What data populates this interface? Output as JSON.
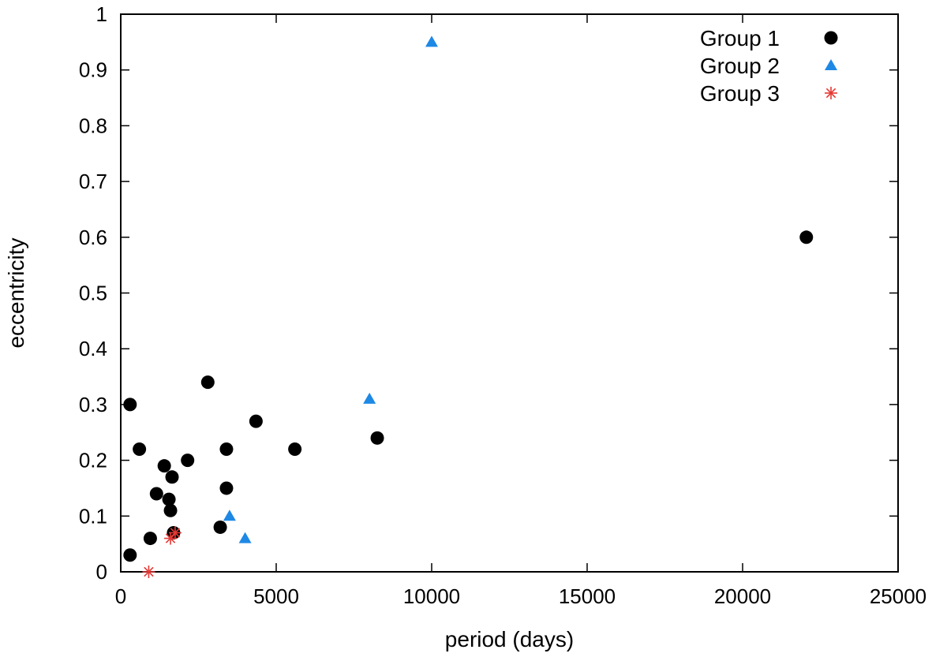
{
  "chart_data": {
    "type": "scatter",
    "xlabel": "period (days)",
    "ylabel": "eccentricity",
    "xlim": [
      0,
      25000
    ],
    "ylim": [
      0,
      1
    ],
    "x_ticks": [
      "0",
      "5000",
      "10000",
      "15000",
      "20000",
      "25000"
    ],
    "y_ticks": [
      "0",
      "0.1",
      "0.2",
      "0.3",
      "0.4",
      "0.5",
      "0.6",
      "0.7",
      "0.8",
      "0.9",
      "1"
    ],
    "legend_position": "top-right",
    "grid": false,
    "series": [
      {
        "name": "Group 1",
        "marker": "circle",
        "color": "#000000",
        "points": [
          [
            300,
            0.03
          ],
          [
            300,
            0.3
          ],
          [
            600,
            0.22
          ],
          [
            950,
            0.06
          ],
          [
            1150,
            0.14
          ],
          [
            1400,
            0.19
          ],
          [
            1550,
            0.13
          ],
          [
            1600,
            0.11
          ],
          [
            1650,
            0.17
          ],
          [
            1700,
            0.07
          ],
          [
            2150,
            0.2
          ],
          [
            2800,
            0.34
          ],
          [
            3200,
            0.08
          ],
          [
            3400,
            0.15
          ],
          [
            3400,
            0.22
          ],
          [
            4350,
            0.27
          ],
          [
            5600,
            0.22
          ],
          [
            8250,
            0.24
          ],
          [
            22050,
            0.6
          ]
        ]
      },
      {
        "name": "Group 2",
        "marker": "triangle",
        "color": "#1E88E5",
        "points": [
          [
            3500,
            0.1
          ],
          [
            4000,
            0.06
          ],
          [
            8000,
            0.31
          ],
          [
            10000,
            0.95
          ]
        ]
      },
      {
        "name": "Group 3",
        "marker": "star",
        "color": "#E53935",
        "points": [
          [
            900,
            0.0
          ],
          [
            1600,
            0.06
          ],
          [
            1750,
            0.07
          ]
        ]
      }
    ]
  }
}
